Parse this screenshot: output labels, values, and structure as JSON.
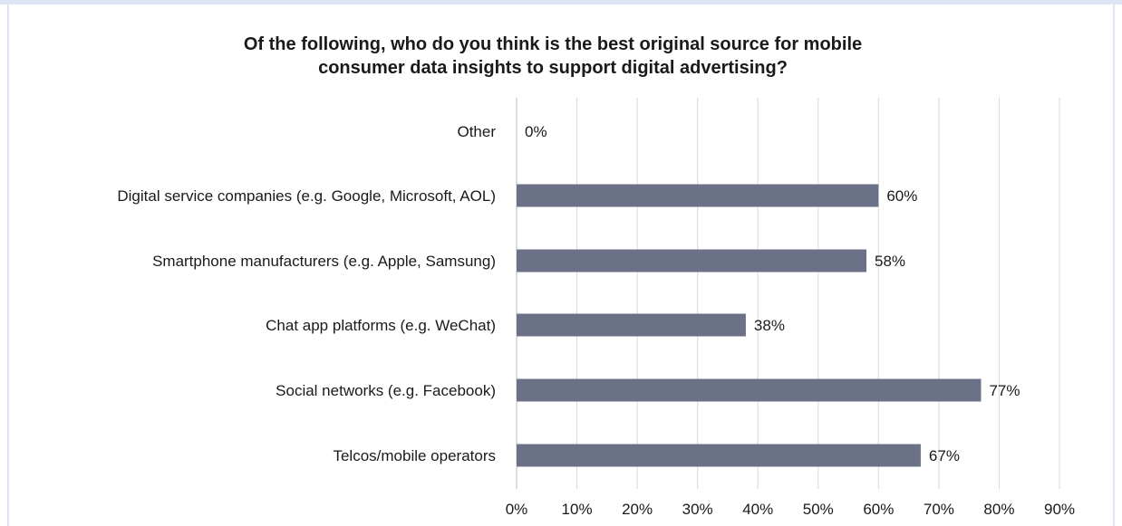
{
  "chart_data": {
    "type": "bar",
    "orientation": "horizontal",
    "title": "Of the following, who do you think is the best original source for mobile consumer data insights to support digital advertising?",
    "title_lines": [
      "Of the following, who do you think is the best original source for mobile",
      "consumer data insights to support digital advertising?"
    ],
    "categories": [
      "Other",
      "Digital service companies (e.g. Google, Microsoft, AOL)",
      "Smartphone manufacturers (e.g. Apple, Samsung)",
      "Chat app platforms (e.g. WeChat)",
      "Social networks (e.g. Facebook)",
      "Telcos/mobile operators"
    ],
    "values": [
      0,
      60,
      58,
      38,
      77,
      67
    ],
    "value_labels": [
      "0%",
      "60%",
      "58%",
      "38%",
      "77%",
      "67%"
    ],
    "x_ticks": [
      "0%",
      "10%",
      "20%",
      "30%",
      "40%",
      "50%",
      "60%",
      "70%",
      "80%",
      "90%"
    ],
    "xlim": [
      0,
      90
    ],
    "xlabel": "",
    "ylabel": "",
    "grid": true,
    "legend": "none",
    "bar_color": "#6b7186",
    "grid_color": "#d9d9d9"
  }
}
